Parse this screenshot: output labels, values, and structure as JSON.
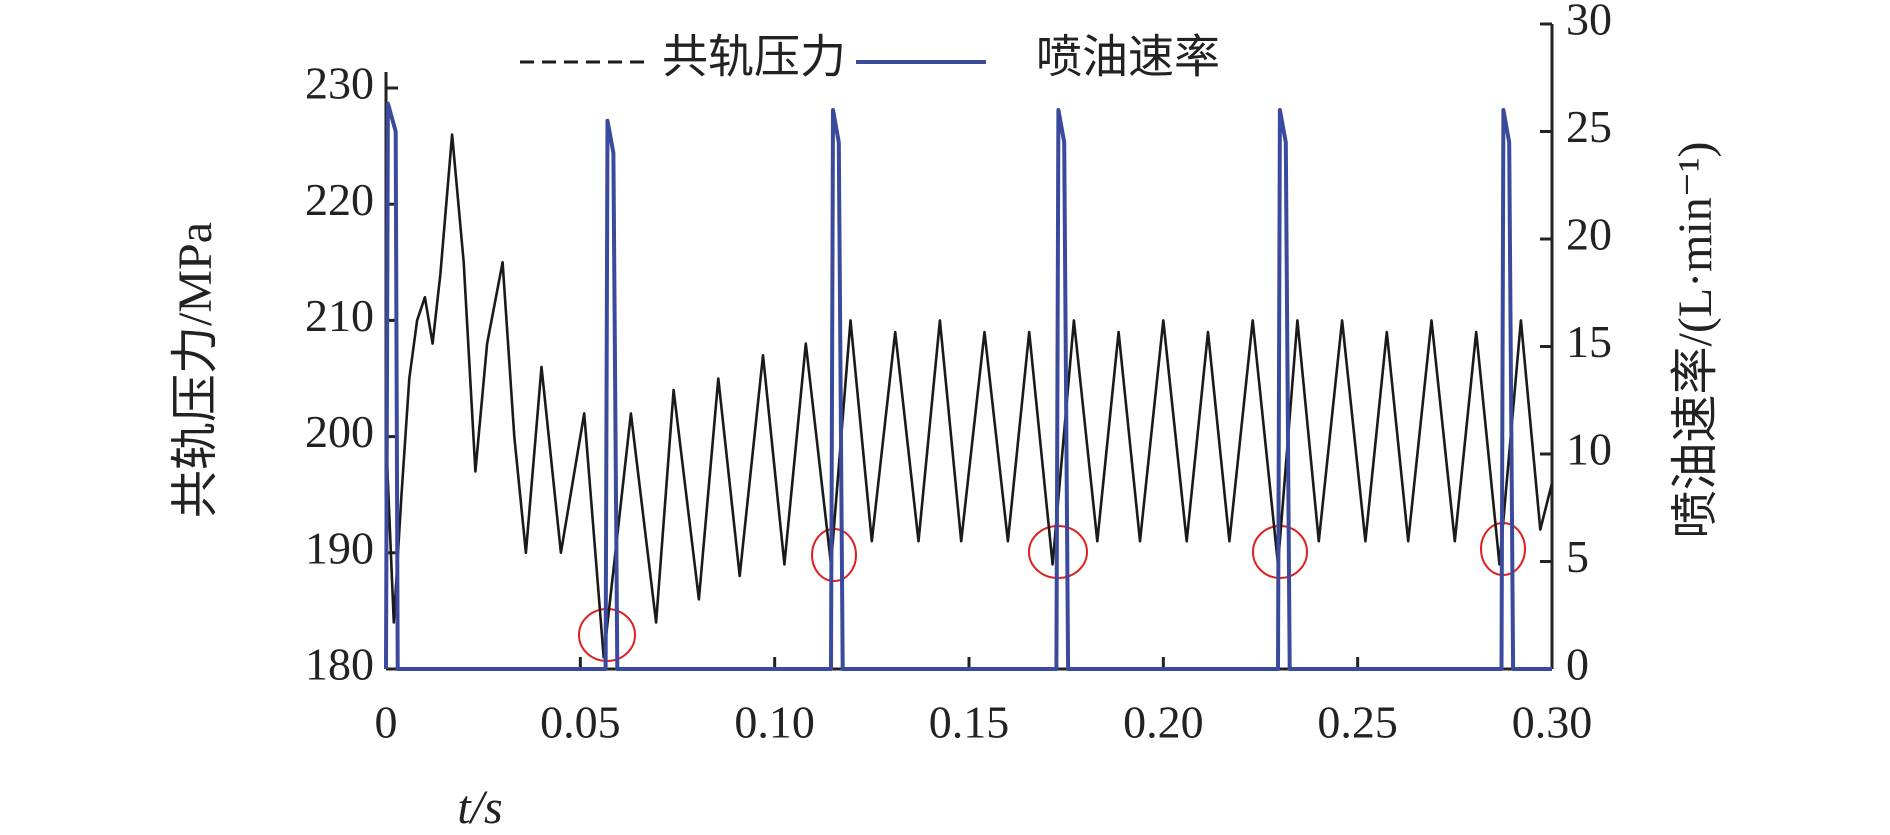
{
  "chart_data": {
    "type": "line",
    "xlabel": "t/s",
    "ylabel": "共轨压力/MPa",
    "y2label": "喷油速率/(L·min⁻¹)",
    "xlim": [
      0,
      0.3
    ],
    "xticks": [
      0,
      0.05,
      {
        "value": 0.1,
        "label": "0.10"
      },
      0.15,
      {
        "value": 0.2,
        "label": "0.20"
      },
      0.25,
      {
        "value": 0.3,
        "label": "0.30"
      }
    ],
    "ylim": [
      180,
      230
    ],
    "yticks": [
      180,
      190,
      200,
      210,
      220,
      230
    ],
    "y2lim": [
      0,
      30
    ],
    "y2ticks": [
      0,
      5,
      10,
      15,
      20,
      25,
      30
    ],
    "legend": "top",
    "series": [
      {
        "name": "共轨压力",
        "color": "#1a1a1a",
        "x": [
          0,
          0.002,
          0.004,
          0.006,
          0.008,
          0.01,
          0.012,
          0.014,
          0.017,
          0.02,
          0.023,
          0.026,
          0.03,
          0.033,
          0.036,
          0.04,
          0.045,
          0.051,
          0.056,
          0.063,
          0.0695,
          0.074,
          0.0805,
          0.0855,
          0.091,
          0.097,
          0.1025,
          0.108,
          0.1145,
          0.1195,
          0.125,
          0.131,
          0.137,
          0.1425,
          0.148,
          0.154,
          0.16,
          0.1655,
          0.1715,
          0.177,
          0.183,
          0.1885,
          0.194,
          0.2,
          0.206,
          0.2115,
          0.217,
          0.223,
          0.2295,
          0.2345,
          0.24,
          0.246,
          0.252,
          0.2575,
          0.263,
          0.269,
          0.275,
          0.2805,
          0.2865,
          0.292,
          0.297,
          0.3
        ],
        "values": [
          200,
          184,
          195,
          205,
          210,
          212,
          208,
          214,
          226,
          215,
          197,
          208,
          215,
          200,
          190,
          206,
          190,
          202,
          181,
          202,
          184,
          204,
          186,
          205,
          188,
          207,
          189,
          208,
          189,
          210,
          191,
          209,
          191,
          210,
          191,
          209,
          191,
          209,
          189,
          210,
          191,
          209,
          191,
          210,
          191,
          209,
          191,
          210,
          189,
          210,
          191,
          210,
          191,
          209,
          191,
          210,
          191,
          209,
          189,
          210,
          192,
          196
        ]
      },
      {
        "name": "喷油速率",
        "color": "#3a4a9c",
        "axis": "y2",
        "x": [
          0,
          0.0005,
          0.0025,
          0.003,
          0.0565,
          0.057,
          0.0585,
          0.0595,
          0.1145,
          0.115,
          0.1165,
          0.1175,
          0.1725,
          0.173,
          0.1745,
          0.1755,
          0.2295,
          0.23,
          0.2315,
          0.2325,
          0.287,
          0.2875,
          0.289,
          0.29,
          0.3
        ],
        "values": [
          0,
          26.3,
          25,
          0,
          0,
          25.5,
          24,
          0,
          0,
          26,
          24.5,
          0,
          0,
          26,
          24.5,
          0,
          0,
          26,
          24.5,
          0,
          0,
          26,
          24.5,
          0,
          0
        ]
      }
    ]
  }
}
